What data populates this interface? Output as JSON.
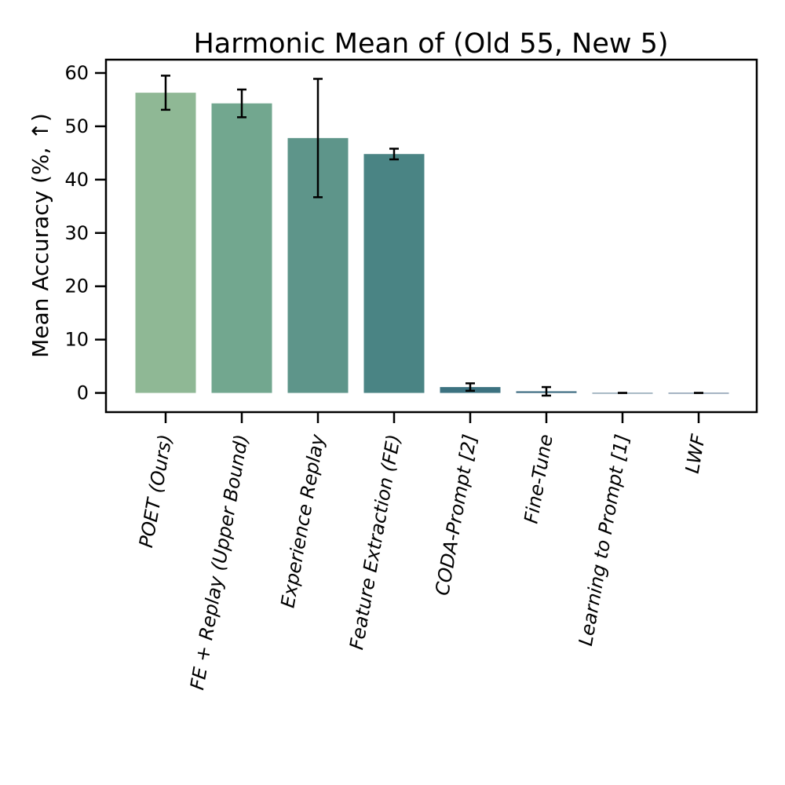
{
  "chart_data": {
    "type": "bar",
    "title": "Harmonic Mean of (Old 55, New 5)",
    "xlabel": "",
    "ylabel": "Mean Accuracy (%, ↑)",
    "ylim": [
      -3.6,
      62.5
    ],
    "yticks": [
      0,
      10,
      20,
      30,
      40,
      50,
      60
    ],
    "grid": false,
    "categories": [
      "POET (Ours)",
      "FE + Replay (Upper Bound)",
      "Experience Replay",
      "Feature Extraction (FE)",
      "CODA-Prompt [2]",
      "Fine-Tune",
      "Learning to Prompt [1]",
      "LWF"
    ],
    "values": [
      56.3,
      54.3,
      47.8,
      44.8,
      1.1,
      0.3,
      0.0,
      0.0
    ],
    "error": [
      3.2,
      2.6,
      11.1,
      1.0,
      0.7,
      0.8,
      0.0,
      0.0
    ],
    "colors": [
      "#8fb895",
      "#72a78f",
      "#5e958a",
      "#4a8484",
      "#3c7280",
      "#316279",
      "#2a5472",
      "#23466a"
    ]
  }
}
